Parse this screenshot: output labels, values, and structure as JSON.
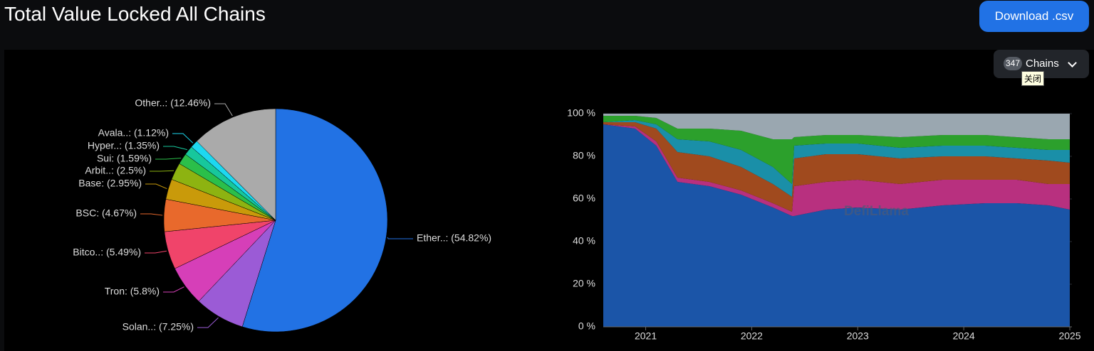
{
  "header": {
    "title": "Total Value Locked All Chains",
    "button": "Download .csv"
  },
  "controls": {
    "count": 347,
    "label": "Chains",
    "tooltip": "关闭"
  },
  "watermark": "DefiLlama",
  "chart_data": [
    {
      "type": "pie",
      "categories": [
        "Ether..: (54.82%)",
        "Solan..: (7.25%)",
        "Tron: (5.8%)",
        "Bitco..: (5.49%)",
        "BSC: (4.67%)",
        "Base: (2.95%)",
        "Arbit..: (2.5%)",
        "Sui: (1.59%)",
        "Hyper..: (1.35%)",
        "Avala..: (1.12%)",
        "Other..: (12.46%)"
      ],
      "values": [
        54.82,
        7.25,
        5.8,
        5.49,
        4.67,
        2.95,
        2.5,
        1.59,
        1.35,
        1.12,
        12.46
      ],
      "colors": [
        "#2272e4",
        "#9b5bd6",
        "#d63fb8",
        "#f0446a",
        "#e8692c",
        "#c99a0a",
        "#8db311",
        "#2bbf4a",
        "#17c79c",
        "#1dd8f0",
        "#aaaaaa"
      ]
    },
    {
      "type": "area",
      "stacked": true,
      "x": [
        2020.6,
        2020.9,
        2021.1,
        2021.3,
        2021.6,
        2021.9,
        2022.2,
        2022.38,
        2022.4,
        2022.7,
        2023.0,
        2023.4,
        2023.8,
        2024.2,
        2024.5,
        2024.8,
        2025.0
      ],
      "xlim": [
        2020.6,
        2025.02
      ],
      "xticks": [
        2021,
        2022,
        2023,
        2024,
        2025
      ],
      "ylim": [
        0,
        100
      ],
      "yticks": [
        {
          "value": 0,
          "label": "0 %"
        },
        {
          "value": 20,
          "label": "20 %"
        },
        {
          "value": 40,
          "label": "40 %"
        },
        {
          "value": 60,
          "label": "60 %"
        },
        {
          "value": 80,
          "label": "80 %"
        },
        {
          "value": 100,
          "label": "100 %"
        }
      ],
      "grid": true,
      "series": [
        {
          "color": "#1b55a8",
          "values": [
            95,
            93,
            85,
            68,
            66,
            62,
            56,
            52,
            52,
            55,
            56,
            55,
            57,
            58,
            58,
            57,
            55
          ]
        },
        {
          "color": "#b8307f",
          "values": [
            0,
            1,
            2,
            2,
            2,
            2,
            2,
            2,
            14,
            13,
            13,
            12,
            12,
            11,
            11,
            10,
            12
          ]
        },
        {
          "color": "#a04a1e",
          "values": [
            1,
            2,
            6,
            12,
            12,
            11,
            9,
            7,
            13,
            13,
            12,
            12,
            11,
            11,
            10,
            11,
            10
          ]
        },
        {
          "color": "#1a8fa8",
          "values": [
            0,
            1,
            2,
            6,
            7,
            8,
            8,
            6,
            6,
            5,
            5,
            5,
            5,
            5,
            5,
            5,
            6
          ]
        },
        {
          "color": "#2ca02c",
          "values": [
            3,
            2,
            3,
            5,
            6,
            9,
            13,
            21,
            4,
            4,
            4,
            5,
            5,
            5,
            5,
            5,
            5
          ]
        },
        {
          "color": "#9aa7b0",
          "values": [
            1,
            1,
            2,
            7,
            7,
            8,
            12,
            12,
            11,
            10,
            10,
            11,
            10,
            10,
            11,
            12,
            12
          ]
        }
      ]
    }
  ]
}
